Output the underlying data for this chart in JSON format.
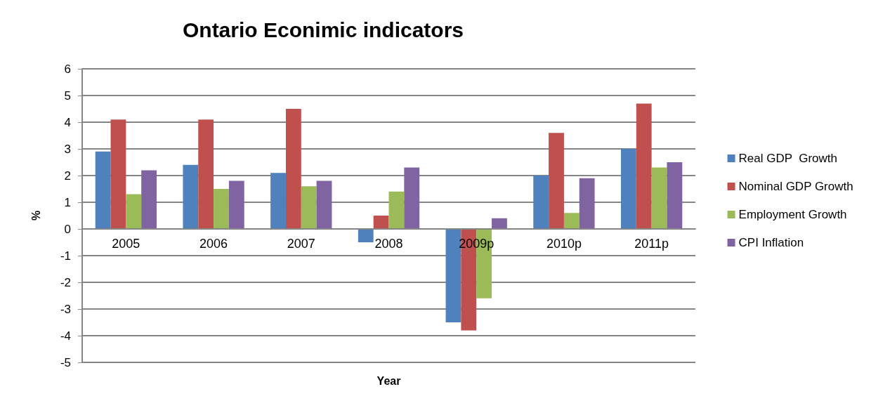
{
  "chart_data": {
    "type": "bar",
    "title": "Ontario Econimic indicators",
    "xlabel": "Year",
    "ylabel": "%",
    "categories": [
      "2005",
      "2006",
      "2007",
      "2008",
      "2009p",
      "2010p",
      "2011p"
    ],
    "series": [
      {
        "name": "Real GDP  Growth",
        "color": "#4f81bd",
        "values": [
          2.9,
          2.4,
          2.1,
          -0.5,
          -3.5,
          2.0,
          3.0
        ]
      },
      {
        "name": "Nominal GDP Growth",
        "color": "#c0504d",
        "values": [
          4.1,
          4.1,
          4.5,
          0.5,
          -3.8,
          3.6,
          4.7
        ]
      },
      {
        "name": "Employment Growth",
        "color": "#9bbb59",
        "values": [
          1.3,
          1.5,
          1.6,
          1.4,
          -2.6,
          0.6,
          2.3
        ]
      },
      {
        "name": "CPI Inflation",
        "color": "#8064a2",
        "values": [
          2.2,
          1.8,
          1.8,
          2.3,
          0.4,
          1.9,
          2.5
        ]
      }
    ],
    "ylim": [
      -5,
      6
    ],
    "yticks": [
      -5,
      -4,
      -3,
      -2,
      -1,
      0,
      1,
      2,
      3,
      4,
      5,
      6
    ],
    "grid": "y",
    "legend": "right"
  }
}
